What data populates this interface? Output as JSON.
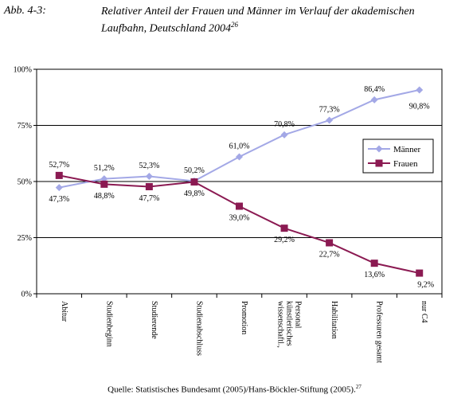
{
  "header": {
    "figure_label": "Abb. 4-3:",
    "title_line1": "Relativer Anteil der Frauen und Männer im Verlauf der akademischen",
    "title_line2": "Laufbahn, Deutschland 2004",
    "title_footnote": "26"
  },
  "source": {
    "text": "Quelle: Statistisches Bundesamt (2005)/Hans-Böckler-Stiftung (2005).",
    "footnote": "27"
  },
  "chart_data": {
    "type": "line",
    "categories": [
      [
        "Abitur"
      ],
      [
        "Studienbeginn"
      ],
      [
        "Studierende"
      ],
      [
        "Studienabschluss"
      ],
      [
        "Promotion"
      ],
      [
        "wissenschaftl.,",
        "künstlerisches",
        "Personal"
      ],
      [
        "Habilitation"
      ],
      [
        "Professuren gesamt"
      ],
      [
        "nur C4"
      ]
    ],
    "series": [
      {
        "name": "Männer",
        "values": [
          47.3,
          51.2,
          52.3,
          50.2,
          61.0,
          70.8,
          77.3,
          86.4,
          90.8
        ],
        "labels": [
          "47,3%",
          "51,2%",
          "52,3%",
          "50,2%",
          "61,0%",
          "70,8%",
          "77,3%",
          "86,4%",
          "90,8%"
        ],
        "color": "#a3a8e6",
        "marker": "diamond"
      },
      {
        "name": "Frauen",
        "values": [
          52.7,
          48.8,
          47.7,
          49.8,
          39.0,
          29.2,
          22.7,
          13.6,
          9.2
        ],
        "labels": [
          "52,7%",
          "48,8%",
          "47,7%",
          "49,8%",
          "39,0%",
          "29,2%",
          "22,7%",
          "13,6%",
          "9,2%"
        ],
        "color": "#8b1a52",
        "marker": "square"
      }
    ],
    "yticks": [
      0,
      25,
      50,
      75,
      100
    ],
    "ytick_labels": [
      "0%",
      "25%",
      "50%",
      "75%",
      "100%"
    ],
    "ylim": [
      0,
      100
    ],
    "grid": true,
    "legend_position": "right"
  }
}
